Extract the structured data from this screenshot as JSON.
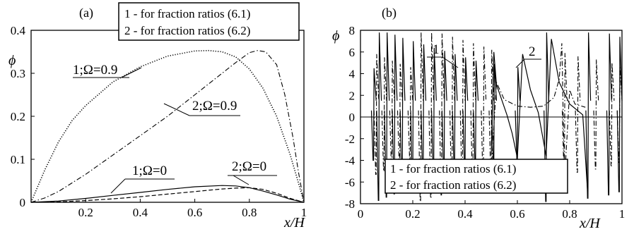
{
  "panel_a": {
    "label": "(a)",
    "ylabel": "ϕ",
    "xlabel": "x/H",
    "legend": [
      "1 - for fraction ratios (6.1)",
      "2 - for fraction ratios (6.2)"
    ],
    "curve_labels": [
      "1;Ω=0.9",
      "2;Ω=0.9",
      "1;Ω=0",
      "2;Ω=0"
    ]
  },
  "panel_b": {
    "label": "(b)",
    "ylabel": "ϕ",
    "xlabel": "x/H",
    "legend": [
      "1 - for fraction ratios (6.1)",
      "2 - for fraction ratios (6.2)"
    ],
    "curve_labels": [
      "1",
      "2"
    ]
  },
  "chart_data": [
    {
      "type": "line",
      "panel": "(a)",
      "xlabel": "x/H",
      "ylabel": "ϕ",
      "xlim": [
        0,
        1.0
      ],
      "ylim": [
        0,
        0.4
      ],
      "xticks": [
        0.2,
        0.4,
        0.6,
        0.8,
        1.0
      ],
      "yticks": [
        0,
        0.1,
        0.2,
        0.3,
        0.4
      ],
      "legend": [
        "1 - for fraction ratios (6.1)",
        "2 - for fraction ratios (6.2)"
      ],
      "legend_position": "top-right",
      "series": [
        {
          "name": "1;Ω=0.9",
          "style": "dotted",
          "x": [
            0,
            0.05,
            0.1,
            0.15,
            0.2,
            0.3,
            0.4,
            0.5,
            0.6,
            0.65,
            0.7,
            0.75,
            0.8,
            0.85,
            0.9,
            0.95,
            0.98,
            1.0
          ],
          "y": [
            0,
            0.075,
            0.14,
            0.19,
            0.225,
            0.28,
            0.315,
            0.34,
            0.352,
            0.353,
            0.35,
            0.338,
            0.31,
            0.265,
            0.2,
            0.11,
            0.045,
            0
          ]
        },
        {
          "name": "2;Ω=0.9",
          "style": "dash-dot",
          "x": [
            0,
            0.05,
            0.1,
            0.2,
            0.3,
            0.4,
            0.5,
            0.6,
            0.7,
            0.75,
            0.8,
            0.83,
            0.86,
            0.9,
            0.93,
            0.96,
            0.98,
            1.0
          ],
          "y": [
            0,
            0.01,
            0.025,
            0.065,
            0.11,
            0.155,
            0.2,
            0.25,
            0.3,
            0.325,
            0.348,
            0.353,
            0.35,
            0.32,
            0.25,
            0.15,
            0.07,
            0
          ]
        },
        {
          "name": "1;Ω=0",
          "style": "solid",
          "x": [
            0,
            0.1,
            0.2,
            0.3,
            0.4,
            0.5,
            0.6,
            0.7,
            0.75,
            0.8,
            0.85,
            0.9,
            0.95,
            1.0
          ],
          "y": [
            0,
            0.003,
            0.009,
            0.016,
            0.023,
            0.03,
            0.036,
            0.039,
            0.038,
            0.034,
            0.026,
            0.017,
            0.007,
            0
          ]
        },
        {
          "name": "2;Ω=0",
          "style": "dashed",
          "x": [
            0,
            0.1,
            0.2,
            0.3,
            0.4,
            0.5,
            0.6,
            0.7,
            0.75,
            0.8,
            0.85,
            0.9,
            0.95,
            1.0
          ],
          "y": [
            0,
            0.001,
            0.004,
            0.008,
            0.013,
            0.019,
            0.025,
            0.031,
            0.033,
            0.034,
            0.03,
            0.021,
            0.009,
            0
          ]
        }
      ]
    },
    {
      "type": "line",
      "panel": "(b)",
      "xlabel": "x/H",
      "ylabel": "ϕ",
      "xlim": [
        0,
        1.0
      ],
      "ylim": [
        -8,
        8
      ],
      "xticks": [
        0,
        0.2,
        0.4,
        0.6,
        0.8,
        1.0
      ],
      "yticks": [
        -8,
        -6,
        -4,
        -2,
        0,
        2,
        4,
        6,
        8
      ],
      "legend": [
        "1 - for fraction ratios (6.1)",
        "2 - for fraction ratios (6.2)"
      ],
      "legend_position": "bottom-center",
      "series": [
        {
          "name": "1",
          "style": "solid",
          "poles": [
            0.05,
            0.07,
            0.1,
            0.13,
            0.16,
            0.2,
            0.24,
            0.28,
            0.32,
            0.36,
            0.4,
            0.44,
            0.51,
            0.6,
            0.71,
            0.87,
            0.95,
            0.99
          ],
          "x": [
            0.5,
            0.51,
            0.52,
            0.54,
            0.56,
            0.58,
            0.6,
            0.62,
            0.65,
            0.68,
            0.71,
            0.73,
            0.76,
            0.8,
            0.85,
            0.87
          ],
          "y": [
            -3.5,
            6,
            3,
            1.6,
            0.2,
            -1.5,
            -3.8,
            5.8,
            2.5,
            0.4,
            -3.6,
            7.2,
            3.2,
            1.2,
            0.2,
            -7.5
          ]
        },
        {
          "name": "2",
          "style": "dash-dot",
          "poles": [
            0.06,
            0.09,
            0.12,
            0.15,
            0.19,
            0.23,
            0.27,
            0.31,
            0.35,
            0.39,
            0.43,
            0.47,
            0.5,
            0.78,
            0.83,
            0.9,
            0.96,
            0.99
          ],
          "x": [
            0.5,
            0.52,
            0.55,
            0.6,
            0.65,
            0.7,
            0.74,
            0.76,
            0.77,
            0.78,
            0.8,
            0.82,
            0.86
          ],
          "y": [
            -5,
            3.2,
            1.6,
            1.0,
            0.9,
            1.0,
            1.8,
            3.5,
            6.8,
            -6,
            2.5,
            1.2,
            0.9
          ]
        }
      ]
    }
  ]
}
